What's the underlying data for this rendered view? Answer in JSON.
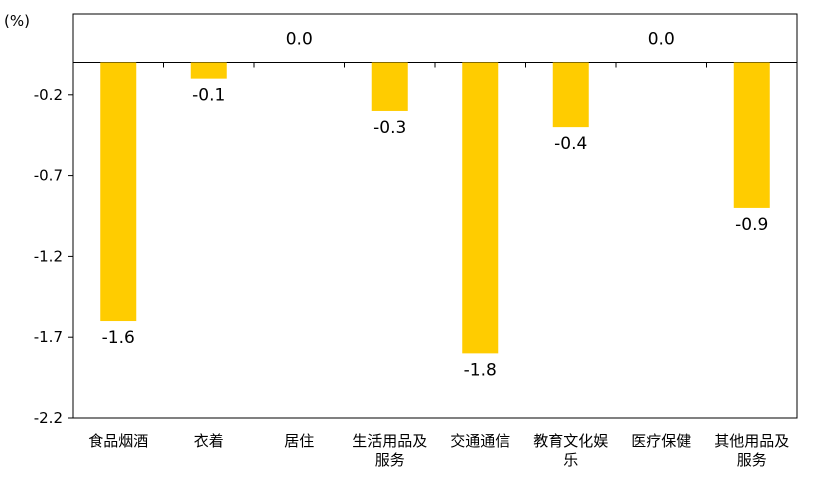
{
  "chart_data": {
    "type": "bar",
    "unit_label": "(%)",
    "categories": [
      "食品烟酒",
      "衣着",
      "居住",
      "生活用品及服务",
      "交通通信",
      "教育文化娱乐",
      "医疗保健",
      "其他用品及服务"
    ],
    "category_lines": [
      [
        "食品烟酒"
      ],
      [
        "衣着"
      ],
      [
        "居住"
      ],
      [
        "生活用品及",
        "服务"
      ],
      [
        "交通通信"
      ],
      [
        "教育文化娱",
        "乐"
      ],
      [
        "医疗保健"
      ],
      [
        "其他用品及",
        "服务"
      ]
    ],
    "values": [
      -1.6,
      -0.1,
      0.0,
      -0.3,
      -1.8,
      -0.4,
      0.0,
      -0.9
    ],
    "data_labels": [
      "-1.6",
      "-0.1",
      "0.0",
      "-0.3",
      "-1.8",
      "-0.4",
      "0.0",
      "-0.9"
    ],
    "ylim": [
      -2.2,
      0.3
    ],
    "yticks": [
      -0.2,
      -0.7,
      -1.2,
      -1.7,
      -2.2
    ],
    "ytick_labels": [
      "-0.2",
      "-0.7",
      "-1.2",
      "-1.7",
      "-2.2"
    ],
    "bar_color": "#FFCC00",
    "grid": false,
    "legend": "none"
  }
}
